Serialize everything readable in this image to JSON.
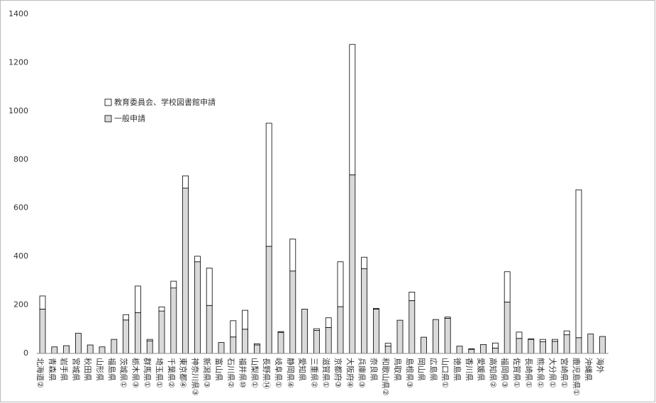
{
  "chart_data": {
    "type": "stacked_bar",
    "categories": [
      "北海道②",
      "青森県",
      "岩手県",
      "宮城県",
      "秋田県",
      "山形県",
      "福島県",
      "茨城県①",
      "栃木県③",
      "群馬県①",
      "埼玉県①",
      "千葉県②",
      "東京都④",
      "神奈川県③",
      "新潟県③",
      "富山県",
      "石川県②",
      "福井県⑩",
      "山梨県①",
      "長野県⑭",
      "岐阜県①",
      "静岡県④",
      "愛知県",
      "三重県②",
      "滋賀県①",
      "京都府③",
      "大阪府④",
      "兵庫県③",
      "奈良県",
      "和歌山県②",
      "鳥取県",
      "島根県③",
      "岡山県",
      "広島県",
      "山口県①",
      "徳島県",
      "香川県",
      "愛媛県",
      "高知県②",
      "福岡県③",
      "佐賀県①",
      "長崎県①",
      "熊本県①",
      "大分県①",
      "宮崎県①",
      "鹿児島県①",
      "沖縄県",
      "海外"
    ],
    "series": [
      {
        "name": "一般申請",
        "color": "#d9d9d9",
        "values": [
          183,
          27,
          32,
          83,
          35,
          27,
          58,
          138,
          168,
          52,
          175,
          270,
          682,
          378,
          198,
          45,
          68,
          100,
          35,
          442,
          87,
          340,
          183,
          95,
          107,
          193,
          737,
          350,
          183,
          30,
          137,
          218,
          67,
          140,
          145,
          30,
          17,
          37,
          22,
          212,
          62,
          58,
          48,
          50,
          77,
          65,
          80,
          70
        ]
      },
      {
        "name": "教育委員会、学校図書館申請",
        "color": "#ffffff",
        "values": [
          54,
          0,
          0,
          0,
          0,
          0,
          0,
          22,
          110,
          6,
          17,
          28,
          51,
          23,
          154,
          0,
          67,
          78,
          5,
          508,
          3,
          132,
          0,
          7,
          40,
          185,
          538,
          47,
          3,
          12,
          0,
          35,
          0,
          0,
          5,
          0,
          2,
          0,
          21,
          125,
          26,
          2,
          10,
          8,
          16,
          610,
          0,
          0
        ]
      }
    ],
    "ylim": [
      0,
      1400
    ],
    "yticks": [
      0,
      200,
      400,
      600,
      800,
      1000,
      1200,
      1400
    ],
    "grid": false
  }
}
